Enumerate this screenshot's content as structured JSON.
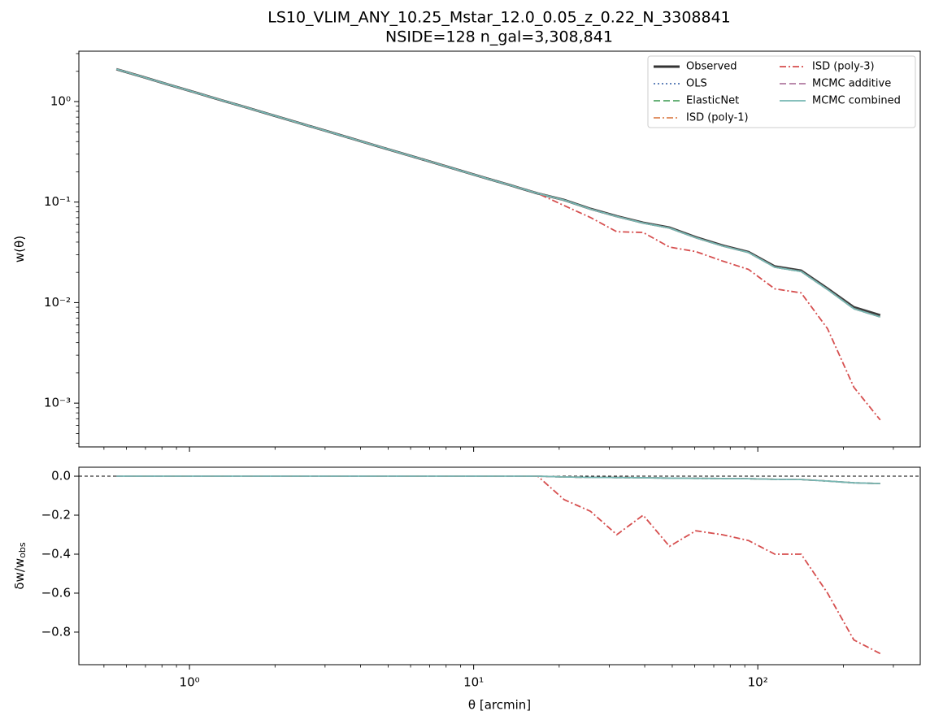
{
  "chart_data": [
    {
      "type": "line",
      "title": "LS10_VLIM_ANY_10.25_Mstar_12.0_0.05_z_0.22_N_3308841",
      "subtitle": "NSIDE=128  n_gal=3,308,841",
      "y_label": "w(θ)",
      "xscale": "log",
      "yscale": "log",
      "legend": "upper right",
      "legend_columns": 2,
      "xlim": [
        0.408,
        373
      ],
      "ylim": [
        0.000367,
        3.17
      ],
      "xticks": [
        1,
        10,
        100
      ],
      "yticks": [
        {
          "value": 0.001,
          "label": "10⁻³"
        },
        {
          "value": 0.01,
          "label": "10⁻²"
        },
        {
          "value": 0.1,
          "label": "10⁻¹"
        },
        {
          "value": 1,
          "label": "10⁰"
        }
      ],
      "x": [
        0.553,
        0.684,
        0.847,
        1.049,
        1.298,
        1.607,
        1.99,
        2.463,
        3.049,
        3.774,
        4.672,
        5.783,
        7.159,
        8.862,
        10.97,
        13.58,
        16.81,
        20.81,
        25.77,
        31.9,
        39.49,
        48.88,
        60.51,
        74.91,
        92.75,
        114.8,
        142.1,
        176.0,
        217.8,
        269.7
      ],
      "series": [
        {
          "name": "Observed",
          "color": "#333333",
          "style": "solid",
          "width": 3,
          "values": [
            2.1,
            1.76,
            1.47,
            1.23,
            1.03,
            0.864,
            0.723,
            0.605,
            0.507,
            0.424,
            0.355,
            0.297,
            0.249,
            0.208,
            0.174,
            0.146,
            0.122,
            0.105,
            0.0857,
            0.0724,
            0.0624,
            0.0558,
            0.0447,
            0.0371,
            0.0319,
            0.0229,
            0.0208,
            0.0138,
            0.009,
            0.0075
          ]
        },
        {
          "name": "OLS",
          "color": "#4c72b0",
          "style": "dotted",
          "width": 1.8,
          "values": [
            2.1,
            1.76,
            1.47,
            1.23,
            1.03,
            0.864,
            0.723,
            0.605,
            0.507,
            0.424,
            0.355,
            0.297,
            0.249,
            0.208,
            0.174,
            0.146,
            0.122,
            0.1046,
            0.0852,
            0.0719,
            0.0619,
            0.0552,
            0.0442,
            0.0367,
            0.0315,
            0.0225,
            0.0204,
            0.0135,
            0.0087,
            0.0072
          ]
        },
        {
          "name": "ElasticNet",
          "color": "#55a868",
          "style": "dashed",
          "width": 1.8,
          "values": [
            2.1,
            1.76,
            1.47,
            1.23,
            1.03,
            0.864,
            0.723,
            0.605,
            0.507,
            0.424,
            0.355,
            0.297,
            0.249,
            0.208,
            0.174,
            0.146,
            0.122,
            0.1046,
            0.0852,
            0.0719,
            0.0619,
            0.0552,
            0.0442,
            0.0367,
            0.0315,
            0.0225,
            0.0204,
            0.0135,
            0.0087,
            0.0072
          ]
        },
        {
          "name": "ISD (poly-1)",
          "color": "#dd8452",
          "style": "dashdot",
          "width": 1.8,
          "values": [
            2.1,
            1.76,
            1.47,
            1.23,
            1.03,
            0.864,
            0.723,
            0.605,
            0.507,
            0.424,
            0.355,
            0.297,
            0.249,
            0.208,
            0.174,
            0.146,
            0.122,
            0.1046,
            0.0852,
            0.0719,
            0.0619,
            0.0552,
            0.0442,
            0.0367,
            0.0315,
            0.0225,
            0.0204,
            0.0135,
            0.0087,
            0.0072
          ]
        },
        {
          "name": "ISD (poly-3)",
          "color": "#d64f4f",
          "style": "dashdot",
          "width": 1.8,
          "values": [
            2.1,
            1.76,
            1.47,
            1.23,
            1.03,
            0.864,
            0.723,
            0.605,
            0.507,
            0.424,
            0.355,
            0.297,
            0.249,
            0.208,
            0.174,
            0.146,
            0.122,
            0.0924,
            0.0703,
            0.0507,
            0.0499,
            0.0357,
            0.0322,
            0.026,
            0.0214,
            0.0137,
            0.0125,
            0.0055,
            0.00144,
            0.00068
          ]
        },
        {
          "name": "MCMC additive",
          "color": "#b07aa1",
          "style": "dashed",
          "width": 1.8,
          "values": [
            2.1,
            1.76,
            1.47,
            1.23,
            1.03,
            0.864,
            0.723,
            0.605,
            0.507,
            0.424,
            0.355,
            0.297,
            0.249,
            0.208,
            0.174,
            0.146,
            0.122,
            0.1046,
            0.0852,
            0.0719,
            0.0619,
            0.0552,
            0.0442,
            0.0367,
            0.0315,
            0.0225,
            0.0204,
            0.0135,
            0.0087,
            0.0072
          ]
        },
        {
          "name": "MCMC combined",
          "color": "#76b7b2",
          "style": "solid",
          "width": 1.8,
          "values": [
            2.1,
            1.76,
            1.47,
            1.23,
            1.03,
            0.864,
            0.723,
            0.605,
            0.507,
            0.424,
            0.355,
            0.297,
            0.249,
            0.208,
            0.174,
            0.146,
            0.122,
            0.1046,
            0.0852,
            0.0719,
            0.0619,
            0.0552,
            0.0442,
            0.0367,
            0.0315,
            0.0225,
            0.0204,
            0.0135,
            0.0087,
            0.0072
          ]
        }
      ]
    },
    {
      "type": "line",
      "x_label": "θ [arcmin]",
      "y_label": "δw/w_obs",
      "xscale": "log",
      "hline": 0,
      "xlim": [
        0.408,
        373
      ],
      "ylim": [
        -0.967,
        0.046
      ],
      "xticks": [
        {
          "value": 1,
          "label": "10⁰"
        },
        {
          "value": 10,
          "label": "10¹"
        },
        {
          "value": 100,
          "label": "10²"
        }
      ],
      "yticks": [
        {
          "value": -0.8,
          "label": "−0.8"
        },
        {
          "value": -0.6,
          "label": "−0.6"
        },
        {
          "value": -0.4,
          "label": "−0.4"
        },
        {
          "value": -0.2,
          "label": "−0.2"
        },
        {
          "value": 0,
          "label": "0.0"
        }
      ],
      "x": [
        0.553,
        0.684,
        0.847,
        1.049,
        1.298,
        1.607,
        1.99,
        2.463,
        3.049,
        3.774,
        4.672,
        5.783,
        7.159,
        8.862,
        10.97,
        13.58,
        16.81,
        20.81,
        25.77,
        31.9,
        39.49,
        48.88,
        60.51,
        74.91,
        92.75,
        114.8,
        142.1,
        176.0,
        217.8,
        269.7
      ],
      "series": [
        {
          "color": "#4c72b0",
          "style": "dotted",
          "width": 1.8,
          "values": [
            0,
            0,
            0,
            0,
            0,
            0,
            0,
            0,
            0,
            0,
            0,
            0,
            0,
            0,
            0,
            0,
            0,
            -0.004,
            -0.006,
            -0.007,
            -0.008,
            -0.01,
            -0.011,
            -0.012,
            -0.013,
            -0.016,
            -0.017,
            -0.025,
            -0.034,
            -0.038
          ]
        },
        {
          "color": "#55a868",
          "style": "dashed",
          "width": 1.8,
          "values": [
            0,
            0,
            0,
            0,
            0,
            0,
            0,
            0,
            0,
            0,
            0,
            0,
            0,
            0,
            0,
            0,
            0,
            -0.004,
            -0.006,
            -0.007,
            -0.008,
            -0.01,
            -0.011,
            -0.012,
            -0.013,
            -0.016,
            -0.017,
            -0.025,
            -0.034,
            -0.038
          ]
        },
        {
          "color": "#dd8452",
          "style": "dashdot",
          "width": 1.8,
          "values": [
            0,
            0,
            0,
            0,
            0,
            0,
            0,
            0,
            0,
            0,
            0,
            0,
            0,
            0,
            0,
            0,
            0,
            -0.004,
            -0.006,
            -0.007,
            -0.008,
            -0.01,
            -0.011,
            -0.012,
            -0.013,
            -0.016,
            -0.017,
            -0.025,
            -0.034,
            -0.038
          ]
        },
        {
          "color": "#d64f4f",
          "style": "dashdot",
          "width": 1.8,
          "values": [
            0,
            0,
            0,
            0,
            0,
            0,
            0,
            0,
            0,
            0,
            0,
            0,
            0,
            0,
            0,
            0,
            0,
            -0.12,
            -0.18,
            -0.3,
            -0.2,
            -0.36,
            -0.28,
            -0.3,
            -0.33,
            -0.4,
            -0.4,
            -0.6,
            -0.84,
            -0.91
          ]
        },
        {
          "color": "#b07aa1",
          "style": "dashed",
          "width": 1.8,
          "values": [
            0,
            0,
            0,
            0,
            0,
            0,
            0,
            0,
            0,
            0,
            0,
            0,
            0,
            0,
            0,
            0,
            0,
            -0.004,
            -0.006,
            -0.007,
            -0.008,
            -0.01,
            -0.011,
            -0.012,
            -0.013,
            -0.016,
            -0.017,
            -0.025,
            -0.034,
            -0.038
          ]
        },
        {
          "color": "#76b7b2",
          "style": "solid",
          "width": 1.8,
          "values": [
            0,
            0,
            0,
            0,
            0,
            0,
            0,
            0,
            0,
            0,
            0,
            0,
            0,
            0,
            0,
            0,
            0,
            -0.004,
            -0.006,
            -0.007,
            -0.008,
            -0.01,
            -0.011,
            -0.012,
            -0.013,
            -0.016,
            -0.017,
            -0.025,
            -0.034,
            -0.038
          ]
        }
      ]
    }
  ]
}
